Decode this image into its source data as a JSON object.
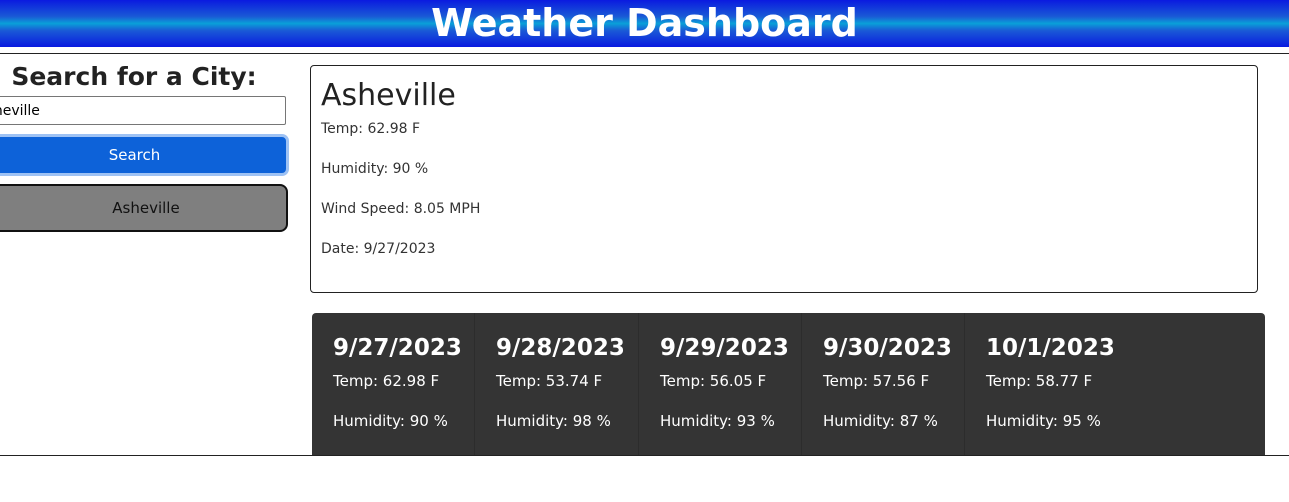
{
  "header": {
    "title": "Weather Dashboard"
  },
  "search": {
    "heading": "Search for a City:",
    "input_value": "Asheville",
    "button_label": "Search"
  },
  "history": [
    "Asheville"
  ],
  "current": {
    "city": "Asheville",
    "temp": "Temp: 62.98 F",
    "humidity": "Humidity: 90 %",
    "wind": "Wind Speed: 8.05 MPH",
    "date": "Date: 9/27/2023"
  },
  "forecast": [
    {
      "date": "9/27/2023",
      "temp": "Temp: 62.98 F",
      "humidity": "Humidity: 90 %"
    },
    {
      "date": "9/28/2023",
      "temp": "Temp: 53.74 F",
      "humidity": "Humidity: 98 %"
    },
    {
      "date": "9/29/2023",
      "temp": "Temp: 56.05 F",
      "humidity": "Humidity: 93 %"
    },
    {
      "date": "9/30/2023",
      "temp": "Temp: 57.56 F",
      "humidity": "Humidity: 87 %"
    },
    {
      "date": "10/1/2023",
      "temp": "Temp: 58.77 F",
      "humidity": "Humidity: 95 %"
    }
  ]
}
